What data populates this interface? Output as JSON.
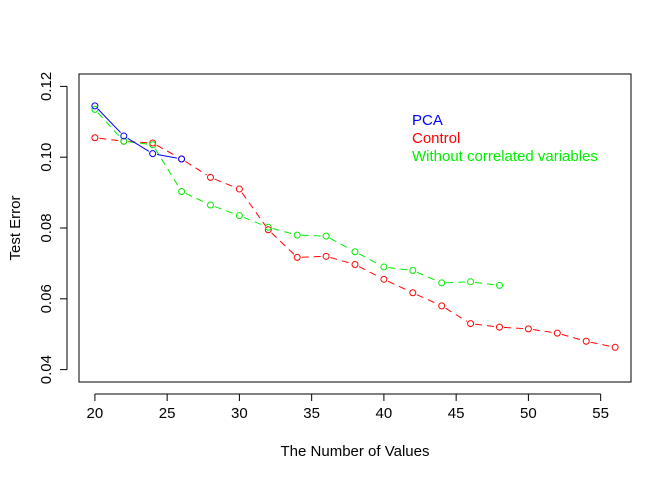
{
  "chart_data": {
    "type": "line",
    "title": "",
    "xlabel": "The Number of Values",
    "ylabel": "Test Error",
    "xlim": [
      18.9,
      57.1
    ],
    "ylim": [
      0.0365,
      0.1235
    ],
    "xticks": [
      20,
      25,
      30,
      35,
      40,
      45,
      50,
      55
    ],
    "yticks": [
      0.04,
      0.06,
      0.08,
      0.1,
      0.12
    ],
    "ytick_labels": [
      "0.04",
      "0.06",
      "0.08",
      "0.10",
      "0.12"
    ],
    "grid": false,
    "legend_position": "top-right",
    "series": [
      {
        "name": "Control",
        "color": "#ff0000",
        "line_style": "dashed",
        "marker": "open-circle",
        "x": [
          20,
          22,
          24,
          26,
          28,
          30,
          32,
          34,
          36,
          38,
          40,
          42,
          44,
          46,
          48,
          50,
          52,
          54,
          56
        ],
        "y": [
          0.1055,
          0.1045,
          0.104,
          0.0995,
          0.0943,
          0.091,
          0.0795,
          0.0717,
          0.072,
          0.0697,
          0.0655,
          0.0617,
          0.058,
          0.053,
          0.052,
          0.0515,
          0.0503,
          0.048,
          0.0463
        ]
      },
      {
        "name": "Without correlated variables",
        "color": "#00ee00",
        "line_style": "dashed",
        "marker": "open-circle",
        "x": [
          20,
          22,
          24,
          26,
          28,
          30,
          32,
          34,
          36,
          38,
          40,
          42,
          44,
          46,
          48
        ],
        "y": [
          0.1135,
          0.1045,
          0.1035,
          0.0903,
          0.0865,
          0.0835,
          0.0802,
          0.078,
          0.0777,
          0.0733,
          0.069,
          0.068,
          0.0645,
          0.0648,
          0.0638
        ]
      },
      {
        "name": "PCA",
        "color": "#0000ff",
        "line_style": "solid",
        "marker": "open-circle",
        "x": [
          20,
          22,
          24,
          26
        ],
        "y": [
          0.1145,
          0.106,
          0.101,
          0.0995
        ]
      }
    ],
    "legend": [
      {
        "label": "PCA",
        "color": "#0000ff"
      },
      {
        "label": "Control",
        "color": "#ff0000"
      },
      {
        "label": "Without correlated variables",
        "color": "#00ee00"
      }
    ]
  }
}
